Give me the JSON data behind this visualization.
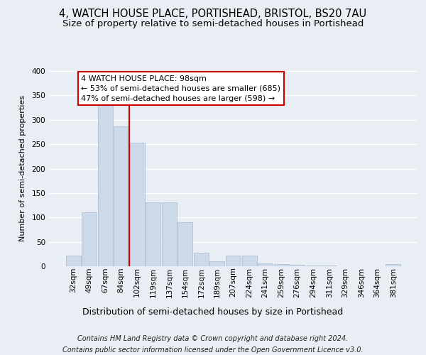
{
  "title": "4, WATCH HOUSE PLACE, PORTISHEAD, BRISTOL, BS20 7AU",
  "subtitle": "Size of property relative to semi-detached houses in Portishead",
  "xlabel": "Distribution of semi-detached houses by size in Portishead",
  "ylabel": "Number of semi-detached properties",
  "bin_labels": [
    "32sqm",
    "49sqm",
    "67sqm",
    "84sqm",
    "102sqm",
    "119sqm",
    "137sqm",
    "154sqm",
    "172sqm",
    "189sqm",
    "207sqm",
    "224sqm",
    "241sqm",
    "259sqm",
    "276sqm",
    "294sqm",
    "311sqm",
    "329sqm",
    "346sqm",
    "364sqm",
    "381sqm"
  ],
  "bar_values": [
    22,
    110,
    330,
    287,
    253,
    131,
    131,
    90,
    28,
    10,
    22,
    22,
    6,
    5,
    3,
    2,
    1,
    0,
    0,
    0,
    5
  ],
  "bar_color": "#ccd9e8",
  "bar_edgecolor": "#aabcce",
  "red_line_bin_index": 4,
  "red_line_color": "#cc0000",
  "annotation_text": "4 WATCH HOUSE PLACE: 98sqm\n← 53% of semi-detached houses are smaller (685)\n47% of semi-detached houses are larger (598) →",
  "annotation_box_facecolor": "#ffffff",
  "annotation_box_edgecolor": "#cc0000",
  "ylim": [
    0,
    400
  ],
  "yticks": [
    0,
    50,
    100,
    150,
    200,
    250,
    300,
    350,
    400
  ],
  "footer_line1": "Contains HM Land Registry data © Crown copyright and database right 2024.",
  "footer_line2": "Contains public sector information licensed under the Open Government Licence v3.0.",
  "background_color": "#e8eef4",
  "plot_background": "#e8eef4",
  "grid_color": "#ffffff",
  "title_fontsize": 10.5,
  "subtitle_fontsize": 9.5,
  "ylabel_fontsize": 8,
  "xlabel_fontsize": 9,
  "tick_fontsize": 7.5,
  "footer_fontsize": 7,
  "annotation_fontsize": 8
}
